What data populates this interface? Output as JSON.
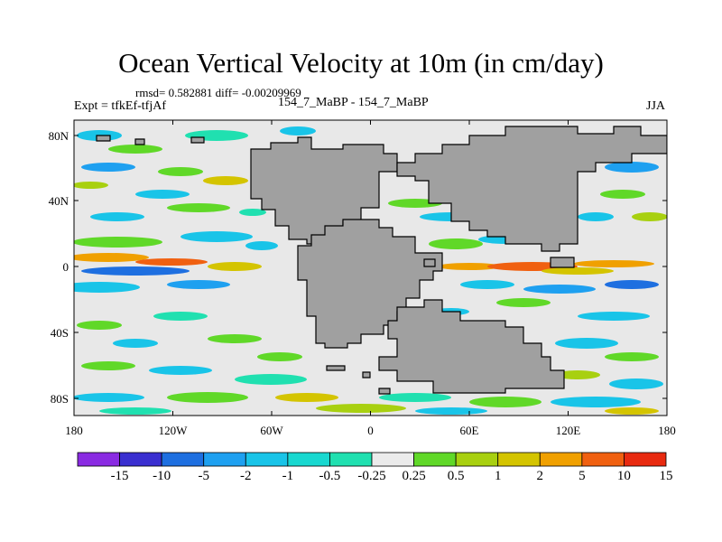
{
  "title": "Ocean Vertical Velocity at 10m (in cm/day)",
  "stats": "rmsd= 0.582881 diff= -0.00209969",
  "expt": "Expt = tfkEf-tfjAf",
  "case": "154_7_MaBP - 154_7_MaBP",
  "season": "JJA",
  "map": {
    "x_ticks": [
      "180",
      "120W",
      "60W",
      "0",
      "60E",
      "120E",
      "180"
    ],
    "y_ticks": [
      "80N",
      "40N",
      "0",
      "40S",
      "80S"
    ],
    "land_color": "#a0a0a0",
    "ocean_color": "#e8e8e8"
  },
  "colorbar": {
    "labels": [
      "-15",
      "-10",
      "-5",
      "-2",
      "-1",
      "-0.5",
      "-0.25",
      "0.25",
      "0.5",
      "1",
      "2",
      "5",
      "10",
      "15"
    ],
    "colors": [
      "#8a2be2",
      "#3a2fd0",
      "#1e6fe0",
      "#1ea0f0",
      "#19c4e8",
      "#18d8d0",
      "#20e0b0",
      "#ebebeb",
      "#60d828",
      "#a8d010",
      "#d4c400",
      "#f0a000",
      "#f06010",
      "#e82a10"
    ]
  }
}
